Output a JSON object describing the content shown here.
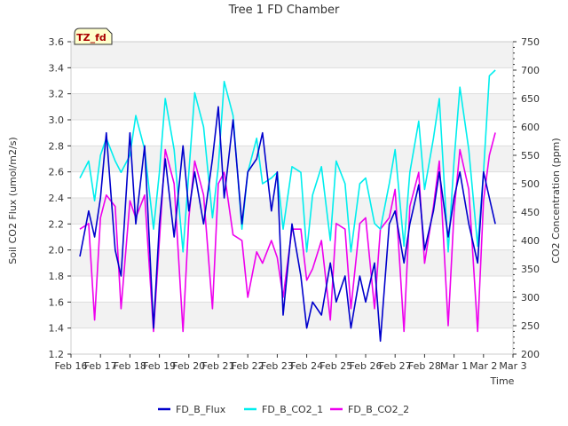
{
  "chart_data": {
    "type": "line",
    "title": "Tree 1 FD Chamber",
    "xlabel": "Time",
    "ylabel": "Soil CO2 Flux (umol/m2/s)",
    "y2label": "CO2 Concentration (ppm)",
    "annotation": "TZ_fd",
    "x_ticks": [
      "Feb 16",
      "Feb 17",
      "Feb 18",
      "Feb 19",
      "Feb 20",
      "Feb 21",
      "Feb 22",
      "Feb 23",
      "Feb 24",
      "Feb 25",
      "Feb 26",
      "Feb 27",
      "Feb 28",
      "Mar 1",
      "Mar 2",
      "Mar 3"
    ],
    "xlim_days": [
      0,
      15
    ],
    "ylim": [
      1.2,
      3.6
    ],
    "y_ticks": [
      "1.2",
      "1.4",
      "1.6",
      "1.8",
      "2.0",
      "2.2",
      "2.4",
      "2.6",
      "2.8",
      "3.0",
      "3.2",
      "3.4",
      "3.6"
    ],
    "y2lim": [
      200,
      750
    ],
    "y2_ticks": [
      "200",
      "250",
      "300",
      "350",
      "400",
      "450",
      "500",
      "550",
      "600",
      "650",
      "700",
      "750"
    ],
    "grid": true,
    "legend_position": "bottom",
    "series": [
      {
        "name": "FD_B_Flux",
        "axis": "left",
        "color": "#0000cc",
        "x": [
          0.3,
          0.6,
          0.8,
          1.0,
          1.2,
          1.5,
          1.7,
          2.0,
          2.2,
          2.5,
          2.8,
          3.0,
          3.2,
          3.5,
          3.8,
          4.0,
          4.2,
          4.5,
          4.8,
          5.0,
          5.2,
          5.5,
          5.8,
          6.0,
          6.3,
          6.5,
          6.8,
          7.0,
          7.2,
          7.5,
          7.8,
          8.0,
          8.2,
          8.5,
          8.8,
          9.0,
          9.3,
          9.5,
          9.8,
          10.0,
          10.3,
          10.5,
          10.8,
          11.0,
          11.3,
          11.5,
          11.8,
          12.0,
          12.3,
          12.5,
          12.8,
          13.0,
          13.2,
          13.5,
          13.8,
          14.0,
          14.2,
          14.4
        ],
        "values": [
          1.95,
          2.3,
          2.1,
          2.4,
          2.9,
          2.0,
          1.8,
          2.9,
          2.2,
          2.8,
          1.4,
          2.2,
          2.7,
          2.1,
          2.8,
          2.3,
          2.6,
          2.2,
          2.7,
          3.1,
          2.4,
          3.0,
          2.2,
          2.6,
          2.7,
          2.9,
          2.3,
          2.6,
          1.5,
          2.2,
          1.8,
          1.4,
          1.6,
          1.5,
          1.9,
          1.6,
          1.8,
          1.4,
          1.8,
          1.6,
          1.9,
          1.3,
          2.2,
          2.3,
          1.9,
          2.2,
          2.5,
          2.0,
          2.3,
          2.6,
          2.1,
          2.4,
          2.6,
          2.2,
          1.9,
          2.6,
          2.4,
          2.2
        ]
      },
      {
        "name": "FD_B_CO2_1",
        "axis": "right",
        "color": "#00eeee",
        "x": [
          0.3,
          0.6,
          0.8,
          1.0,
          1.2,
          1.5,
          1.7,
          2.0,
          2.2,
          2.5,
          2.8,
          3.0,
          3.2,
          3.5,
          3.8,
          4.0,
          4.2,
          4.5,
          4.8,
          5.0,
          5.2,
          5.5,
          5.8,
          6.0,
          6.3,
          6.5,
          6.8,
          7.0,
          7.2,
          7.5,
          7.8,
          8.0,
          8.2,
          8.5,
          8.8,
          9.0,
          9.3,
          9.5,
          9.8,
          10.0,
          10.3,
          10.5,
          10.8,
          11.0,
          11.3,
          11.5,
          11.8,
          12.0,
          12.3,
          12.5,
          12.8,
          13.0,
          13.2,
          13.5,
          13.8,
          14.0,
          14.2,
          14.4
        ],
        "values": [
          510,
          540,
          470,
          550,
          580,
          540,
          520,
          550,
          620,
          560,
          420,
          520,
          650,
          560,
          380,
          520,
          660,
          600,
          440,
          530,
          680,
          620,
          420,
          520,
          580,
          500,
          510,
          520,
          420,
          530,
          520,
          380,
          480,
          530,
          400,
          540,
          500,
          380,
          500,
          510,
          430,
          420,
          500,
          560,
          390,
          520,
          610,
          490,
          580,
          650,
          380,
          540,
          670,
          560,
          390,
          520,
          690,
          700
        ]
      },
      {
        "name": "FD_B_CO2_2",
        "axis": "right",
        "color": "#ee00ee",
        "x": [
          0.3,
          0.6,
          0.8,
          1.0,
          1.2,
          1.5,
          1.7,
          2.0,
          2.2,
          2.5,
          2.8,
          3.0,
          3.2,
          3.5,
          3.8,
          4.0,
          4.2,
          4.5,
          4.8,
          5.0,
          5.2,
          5.5,
          5.8,
          6.0,
          6.3,
          6.5,
          6.8,
          7.0,
          7.2,
          7.5,
          7.8,
          8.0,
          8.2,
          8.5,
          8.8,
          9.0,
          9.3,
          9.5,
          9.8,
          10.0,
          10.3,
          10.5,
          10.8,
          11.0,
          11.3,
          11.5,
          11.8,
          12.0,
          12.3,
          12.5,
          12.8,
          13.0,
          13.2,
          13.5,
          13.8,
          14.0,
          14.2,
          14.4
        ],
        "values": [
          420,
          430,
          260,
          440,
          480,
          460,
          280,
          470,
          440,
          480,
          240,
          400,
          560,
          500,
          240,
          440,
          540,
          480,
          280,
          500,
          520,
          410,
          400,
          300,
          380,
          360,
          400,
          370,
          300,
          420,
          420,
          330,
          350,
          400,
          260,
          430,
          420,
          280,
          430,
          440,
          280,
          420,
          440,
          490,
          240,
          460,
          520,
          360,
          460,
          540,
          250,
          450,
          560,
          490,
          240,
          470,
          550,
          590
        ]
      }
    ]
  }
}
